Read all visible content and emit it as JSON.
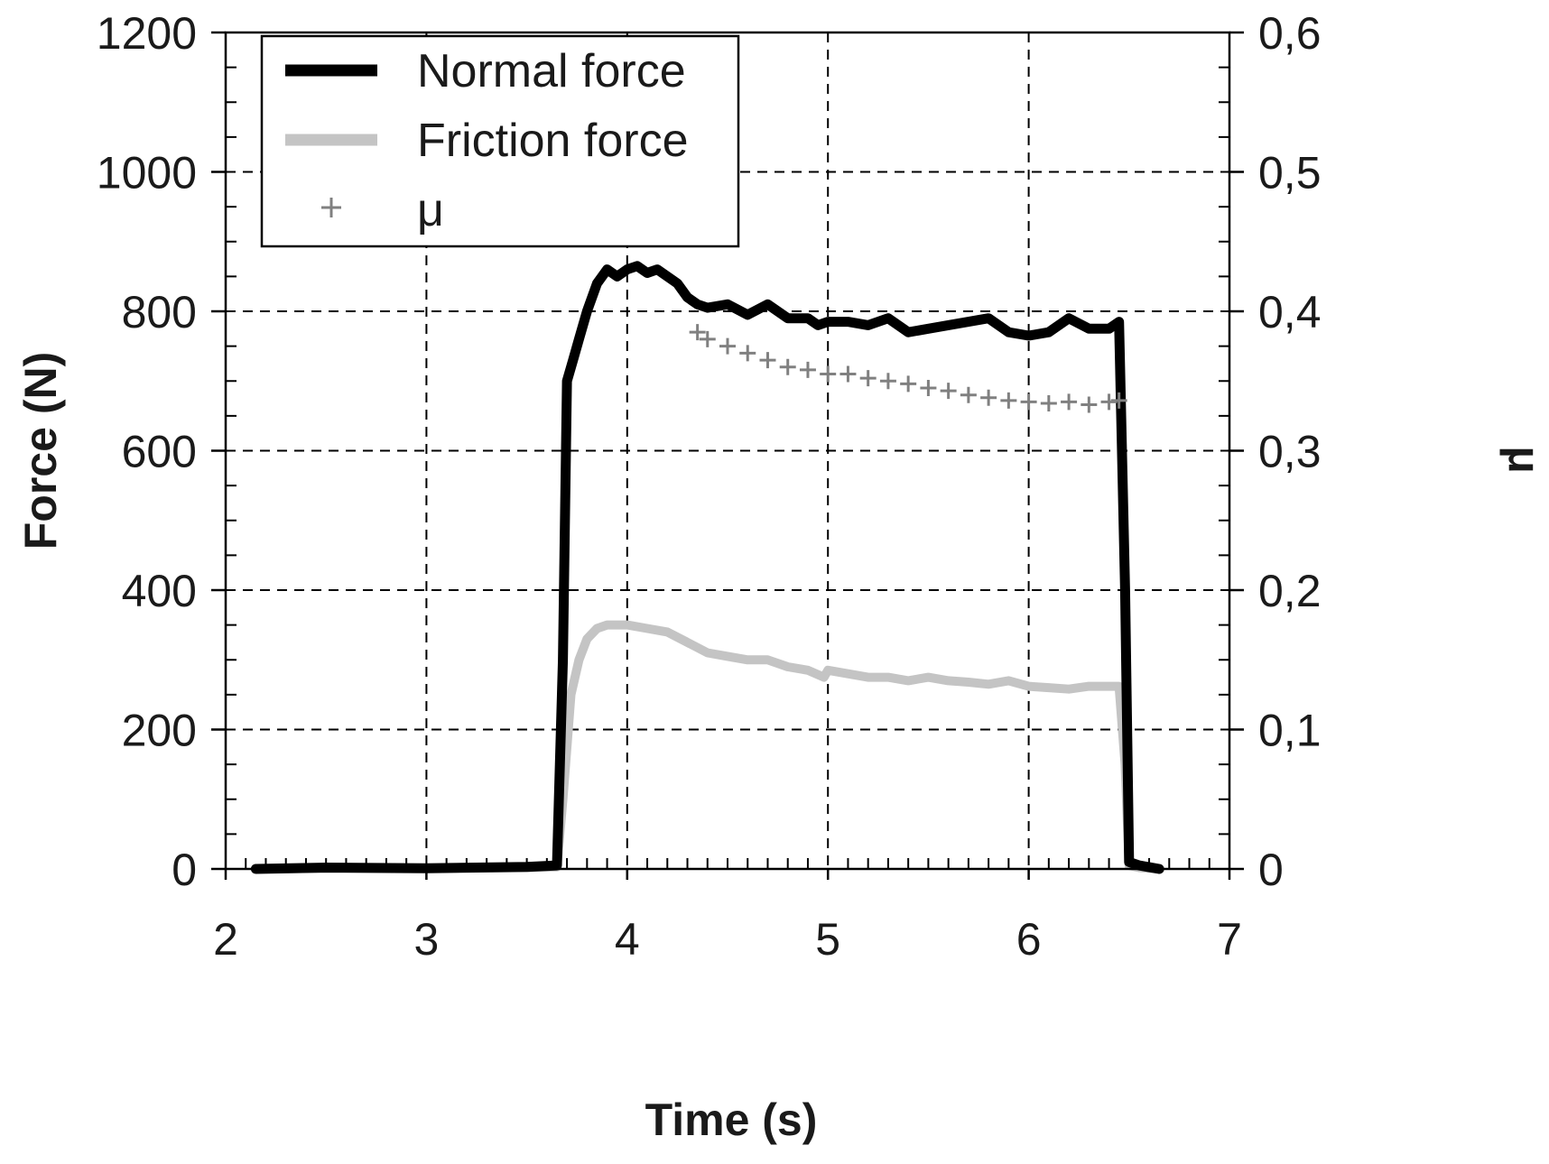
{
  "chart_data": {
    "type": "line",
    "xlabel": "Time (s)",
    "ylabel": "Force (N)",
    "y2label": "μ",
    "xlim": [
      2,
      7
    ],
    "ylim": [
      0,
      1200
    ],
    "y2lim": [
      0,
      0.6
    ],
    "x_ticks": [
      "2",
      "3",
      "4",
      "5",
      "6",
      "7"
    ],
    "y_ticks": [
      "0",
      "200",
      "400",
      "600",
      "800",
      "1000",
      "1200"
    ],
    "y2_ticks": [
      "0",
      "0,1",
      "0,2",
      "0,3",
      "0,4",
      "0,5",
      "0,6"
    ],
    "grid": true,
    "legend": {
      "position": "top-left",
      "entries": [
        "Normal force",
        "Friction force",
        "μ"
      ]
    },
    "series": [
      {
        "name": "Normal force",
        "color": "#000000",
        "style": "line",
        "axis": "left",
        "x": [
          2.15,
          2.5,
          3.0,
          3.5,
          3.65,
          3.68,
          3.7,
          3.73,
          3.76,
          3.8,
          3.85,
          3.9,
          3.95,
          4.0,
          4.05,
          4.1,
          4.15,
          4.2,
          4.25,
          4.3,
          4.35,
          4.4,
          4.5,
          4.6,
          4.7,
          4.8,
          4.9,
          4.95,
          5.0,
          5.1,
          5.2,
          5.3,
          5.4,
          5.5,
          5.6,
          5.7,
          5.8,
          5.9,
          6.0,
          6.1,
          6.2,
          6.3,
          6.4,
          6.45,
          6.48,
          6.5,
          6.55,
          6.65
        ],
        "values": [
          0,
          2,
          1,
          3,
          5,
          300,
          700,
          730,
          760,
          800,
          840,
          860,
          850,
          860,
          865,
          855,
          860,
          850,
          840,
          820,
          810,
          805,
          810,
          795,
          810,
          790,
          790,
          780,
          785,
          785,
          780,
          790,
          770,
          775,
          780,
          785,
          790,
          770,
          765,
          770,
          790,
          775,
          775,
          785,
          400,
          10,
          5,
          0
        ]
      },
      {
        "name": "Friction force",
        "color": "#c4c4c4",
        "style": "line",
        "axis": "left",
        "x": [
          2.15,
          2.5,
          3.0,
          3.5,
          3.65,
          3.68,
          3.72,
          3.76,
          3.8,
          3.85,
          3.9,
          4.0,
          4.1,
          4.2,
          4.3,
          4.4,
          4.5,
          4.6,
          4.7,
          4.8,
          4.9,
          4.98,
          5.0,
          5.1,
          5.2,
          5.3,
          5.4,
          5.5,
          5.6,
          5.7,
          5.8,
          5.9,
          6.0,
          6.1,
          6.2,
          6.3,
          6.4,
          6.45,
          6.48,
          6.5,
          6.55,
          6.65
        ],
        "values": [
          0,
          1,
          1,
          2,
          3,
          100,
          250,
          300,
          330,
          345,
          350,
          350,
          345,
          340,
          325,
          310,
          305,
          300,
          300,
          290,
          285,
          275,
          285,
          280,
          275,
          275,
          270,
          275,
          270,
          268,
          265,
          270,
          262,
          260,
          258,
          262,
          262,
          262,
          150,
          5,
          2,
          0
        ]
      },
      {
        "name": "μ",
        "color": "#808080",
        "style": "markers",
        "axis": "right",
        "x": [
          4.35,
          4.4,
          4.5,
          4.6,
          4.7,
          4.8,
          4.9,
          5.0,
          5.1,
          5.2,
          5.3,
          5.4,
          5.5,
          5.6,
          5.7,
          5.8,
          5.9,
          6.0,
          6.1,
          6.2,
          6.3,
          6.4,
          6.45
        ],
        "values": [
          0.385,
          0.38,
          0.375,
          0.37,
          0.365,
          0.36,
          0.358,
          0.355,
          0.355,
          0.352,
          0.35,
          0.348,
          0.345,
          0.343,
          0.34,
          0.338,
          0.336,
          0.335,
          0.334,
          0.335,
          0.333,
          0.335,
          0.336
        ]
      }
    ]
  }
}
